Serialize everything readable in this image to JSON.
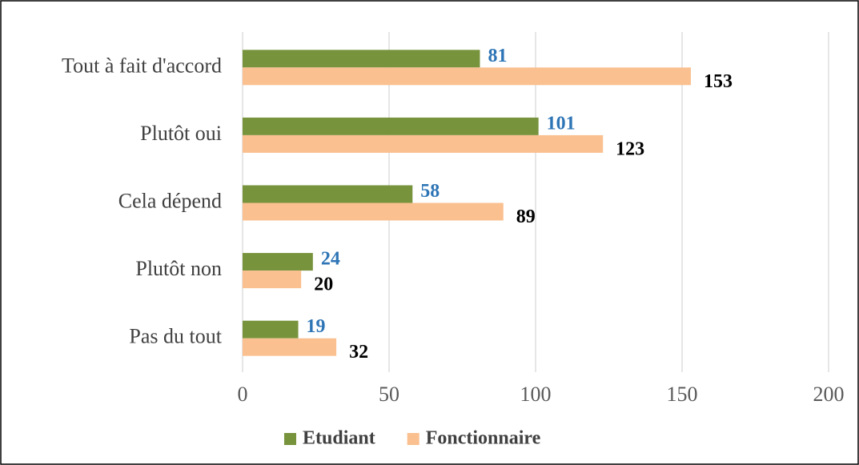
{
  "chart_data": {
    "type": "bar",
    "orientation": "horizontal",
    "categories": [
      "Tout à fait d'accord",
      "Plutôt oui",
      "Cela dépend",
      "Plutôt non",
      "Pas du tout"
    ],
    "series": [
      {
        "name": "Etudiant",
        "color": "#77933c",
        "label_color": "#2e75b6",
        "values": [
          81,
          101,
          58,
          24,
          19
        ]
      },
      {
        "name": "Fonctionnaire",
        "color": "#fac090",
        "label_color": "#000000",
        "values": [
          153,
          123,
          89,
          20,
          32
        ]
      }
    ],
    "xlim": [
      0,
      200
    ],
    "xticks": [
      0,
      50,
      100,
      150,
      200
    ],
    "grid": true,
    "legend": "bottom"
  }
}
